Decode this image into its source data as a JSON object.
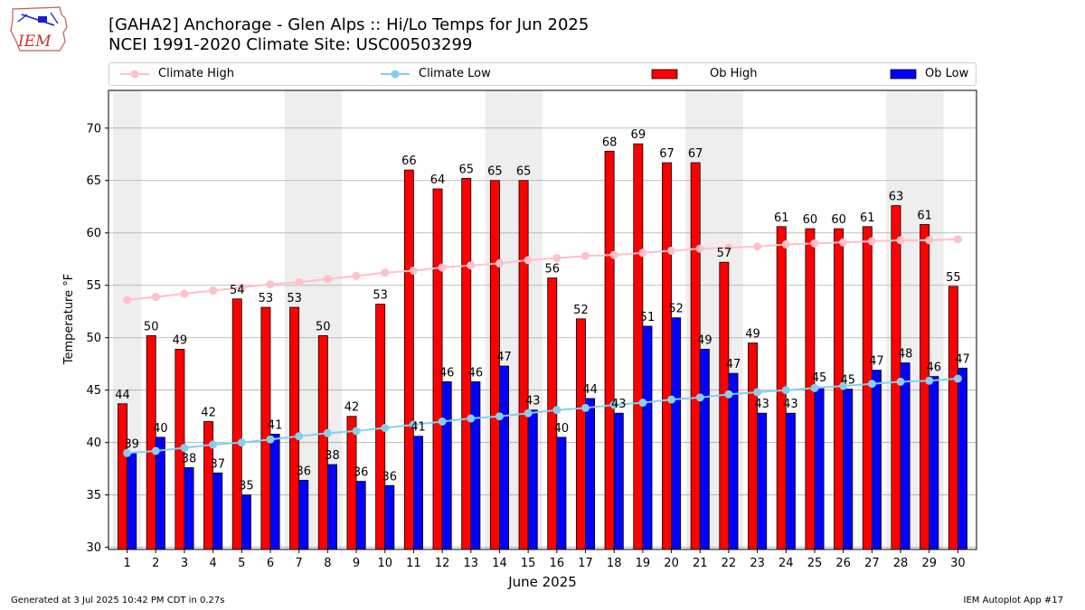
{
  "logo": {
    "text": "IEM"
  },
  "header": {
    "title_line1": "[GAHA2] Anchorage - Glen Alps :: Hi/Lo Temps for Jun 2025",
    "title_line2": "NCEI 1991-2020 Climate Site: USC00503299"
  },
  "legend": {
    "climate_high": "Climate High",
    "climate_low": "Climate Low",
    "ob_high": "Ob High",
    "ob_low": "Ob Low"
  },
  "colors": {
    "ob_high": "#ff0000",
    "ob_low": "#0000ff",
    "climate_high": "#ffc0cb",
    "climate_low": "#87ceeb",
    "weekend_band": "#eeeeee",
    "grid": "#aaaaaa"
  },
  "chart_data": {
    "type": "bar",
    "xlabel": "June 2025",
    "ylabel": "Temperature °F",
    "ylim": [
      29.8,
      73.6
    ],
    "yticks": [
      30,
      35,
      40,
      45,
      50,
      55,
      60,
      65,
      70
    ],
    "grid": true,
    "legend_position": "top",
    "categories": [
      "1",
      "2",
      "3",
      "4",
      "5",
      "6",
      "7",
      "8",
      "9",
      "10",
      "11",
      "12",
      "13",
      "14",
      "15",
      "16",
      "17",
      "18",
      "19",
      "20",
      "21",
      "22",
      "23",
      "24",
      "25",
      "26",
      "27",
      "28",
      "29",
      "30"
    ],
    "weekend_days": [
      1,
      7,
      8,
      14,
      15,
      21,
      22,
      28,
      29
    ],
    "series": [
      {
        "name": "Ob High",
        "kind": "bar",
        "values": [
          43.7,
          50.2,
          48.9,
          42.0,
          53.7,
          52.9,
          52.9,
          50.2,
          42.5,
          53.2,
          66.0,
          64.2,
          65.2,
          65.0,
          65.0,
          55.7,
          51.8,
          67.8,
          68.5,
          66.7,
          66.7,
          57.2,
          49.5,
          60.6,
          60.4,
          60.4,
          60.6,
          62.6,
          60.8,
          54.9
        ],
        "labels": [
          44,
          50,
          49,
          42,
          54,
          53,
          53,
          50,
          42,
          53,
          66,
          64,
          65,
          65,
          65,
          56,
          52,
          68,
          69,
          67,
          67,
          57,
          49,
          61,
          60,
          60,
          61,
          63,
          61,
          55
        ]
      },
      {
        "name": "Ob Low",
        "kind": "bar",
        "values": [
          39.0,
          40.5,
          37.6,
          37.1,
          35.0,
          40.8,
          36.4,
          37.9,
          36.3,
          35.9,
          40.6,
          45.8,
          45.8,
          47.3,
          43.1,
          40.5,
          44.2,
          42.8,
          51.1,
          51.9,
          48.9,
          46.6,
          42.8,
          42.8,
          45.3,
          45.1,
          46.9,
          47.6,
          46.3,
          47.1
        ],
        "labels": [
          39,
          40,
          38,
          37,
          35,
          41,
          36,
          38,
          36,
          36,
          41,
          46,
          46,
          47,
          43,
          40,
          44,
          43,
          51,
          52,
          49,
          47,
          43,
          43,
          45,
          45,
          47,
          48,
          46,
          47
        ]
      },
      {
        "name": "Climate High",
        "kind": "line",
        "values": [
          53.6,
          53.9,
          54.2,
          54.5,
          54.8,
          55.1,
          55.3,
          55.6,
          55.9,
          56.2,
          56.4,
          56.7,
          56.9,
          57.1,
          57.4,
          57.6,
          57.8,
          57.9,
          58.1,
          58.3,
          58.5,
          58.6,
          58.7,
          58.9,
          59.0,
          59.1,
          59.2,
          59.3,
          59.3,
          59.4
        ]
      },
      {
        "name": "Climate Low",
        "kind": "line",
        "values": [
          39.0,
          39.2,
          39.5,
          39.8,
          40.0,
          40.3,
          40.6,
          40.9,
          41.1,
          41.4,
          41.7,
          42.0,
          42.3,
          42.5,
          42.8,
          43.1,
          43.3,
          43.6,
          43.8,
          44.1,
          44.3,
          44.6,
          44.8,
          45.0,
          45.2,
          45.4,
          45.6,
          45.8,
          45.9,
          46.1
        ]
      }
    ]
  },
  "footer": {
    "generated": "Generated at 3 Jul 2025 10:42 PM CDT in 0.27s",
    "app": "IEM Autoplot App #17"
  }
}
